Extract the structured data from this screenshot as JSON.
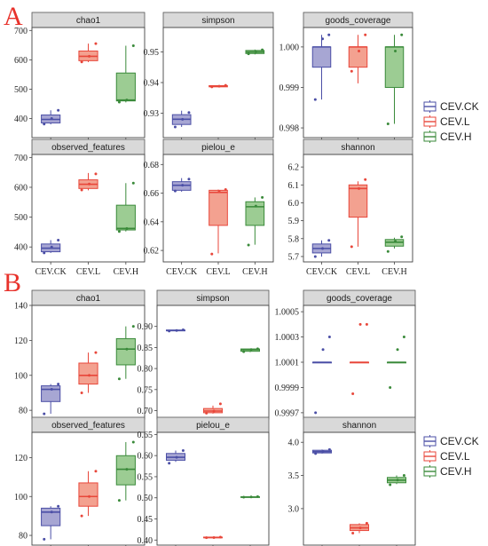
{
  "figure": {
    "panels": [
      {
        "label": "A",
        "legend": [
          {
            "name": "CEV.CK",
            "color": "#4b4fa6",
            "fill": "#a7a6d3"
          },
          {
            "name": "CEV.L",
            "color": "#e8473b",
            "fill": "#f3a190"
          },
          {
            "name": "CEV.H",
            "color": "#3a8a3a",
            "fill": "#9ccc93"
          }
        ]
      },
      {
        "label": "B",
        "legend": [
          {
            "name": "CEV.CK",
            "color": "#4b4fa6",
            "fill": "#a7a6d3"
          },
          {
            "name": "CEV.L",
            "color": "#e8473b",
            "fill": "#f3a190"
          },
          {
            "name": "CEV.H",
            "color": "#3a8a3a",
            "fill": "#9ccc93"
          }
        ]
      }
    ]
  },
  "chart_data": [
    {
      "panel": "A",
      "type": "box",
      "title": "chao1",
      "categories": [
        "CEV.CK",
        "CEV.L",
        "CEV.H"
      ],
      "ylim": [
        335,
        710
      ],
      "yticks": [
        "400",
        "500",
        "600",
        "700"
      ],
      "boxes": [
        {
          "min": 380,
          "q1": 385,
          "median": 397,
          "q3": 412,
          "max": 428,
          "points": [
            381,
            400,
            428
          ]
        },
        {
          "min": 592,
          "q1": 597,
          "median": 612,
          "q3": 630,
          "max": 655,
          "points": [
            593,
            612,
            655
          ]
        },
        {
          "min": 455,
          "q1": 460,
          "median": 463,
          "q3": 555,
          "max": 648,
          "points": [
            456,
            463,
            648
          ]
        }
      ]
    },
    {
      "panel": "A",
      "type": "box",
      "title": "simpson",
      "categories": [
        "CEV.CK",
        "CEV.L",
        "CEV.H"
      ],
      "ylim": [
        0.922,
        0.958
      ],
      "yticks": [
        "0.93",
        "0.94",
        "0.95"
      ],
      "boxes": [
        {
          "min": 0.9255,
          "q1": 0.9263,
          "median": 0.928,
          "q3": 0.9295,
          "max": 0.9308,
          "points": [
            0.9255,
            0.928,
            0.9302
          ]
        },
        {
          "min": 0.9385,
          "q1": 0.9386,
          "median": 0.9388,
          "q3": 0.939,
          "max": 0.9391,
          "points": [
            0.9386,
            0.9388,
            0.9391
          ]
        },
        {
          "min": 0.9492,
          "q1": 0.9495,
          "median": 0.95,
          "q3": 0.9505,
          "max": 0.9508,
          "points": [
            0.9494,
            0.95,
            0.9507
          ]
        }
      ]
    },
    {
      "panel": "A",
      "type": "box",
      "title": "goods_coverage",
      "categories": [
        "CEV.CK",
        "CEV.L",
        "CEV.H"
      ],
      "ylim": [
        0.99776,
        1.00048
      ],
      "yticks": [
        "0.998",
        "0.999",
        "1.000"
      ],
      "boxes": [
        {
          "min": 0.9987,
          "q1": 0.9995,
          "median": 1.0,
          "q3": 1.0,
          "max": 1.0003,
          "points": [
            0.9987,
            1.0002,
            1.0003
          ]
        },
        {
          "min": 0.9991,
          "q1": 0.9995,
          "median": 1.0,
          "q3": 1.0,
          "max": 1.0003,
          "points": [
            0.9994,
            0.9999,
            1.0003
          ]
        },
        {
          "min": 0.9981,
          "q1": 0.999,
          "median": 1.0,
          "q3": 1.0,
          "max": 1.0003,
          "points": [
            0.9981,
            0.9999,
            1.0003
          ]
        }
      ]
    },
    {
      "panel": "A",
      "type": "box",
      "title": "observed_features",
      "categories": [
        "CEV.CK",
        "CEV.L",
        "CEV.H"
      ],
      "ylim": [
        350,
        710
      ],
      "yticks": [
        "400",
        "500",
        "600",
        "700"
      ],
      "boxes": [
        {
          "min": 380,
          "q1": 384,
          "median": 396,
          "q3": 410,
          "max": 423,
          "points": [
            380,
            400,
            423
          ]
        },
        {
          "min": 590,
          "q1": 596,
          "median": 610,
          "q3": 625,
          "max": 648,
          "points": [
            591,
            611,
            645
          ]
        },
        {
          "min": 452,
          "q1": 457,
          "median": 462,
          "q3": 540,
          "max": 614,
          "points": [
            452,
            462,
            614
          ]
        }
      ]
    },
    {
      "panel": "A",
      "type": "box",
      "title": "pielou_e",
      "categories": [
        "CEV.CK",
        "CEV.L",
        "CEV.H"
      ],
      "ylim": [
        0.612,
        0.687
      ],
      "yticks": [
        "0.62",
        "0.64",
        "0.66",
        "0.68"
      ],
      "boxes": [
        {
          "min": 0.661,
          "q1": 0.662,
          "median": 0.6655,
          "q3": 0.668,
          "max": 0.6705,
          "points": [
            0.6615,
            0.6655,
            0.6698
          ]
        },
        {
          "min": 0.618,
          "q1": 0.6375,
          "median": 0.6605,
          "q3": 0.662,
          "max": 0.6625,
          "points": [
            0.6175,
            0.6612,
            0.6625
          ]
        },
        {
          "min": 0.624,
          "q1": 0.6375,
          "median": 0.6505,
          "q3": 0.654,
          "max": 0.657,
          "points": [
            0.6238,
            0.651,
            0.657
          ]
        }
      ]
    },
    {
      "panel": "A",
      "type": "box",
      "title": "shannon",
      "categories": [
        "CEV.CK",
        "CEV.L",
        "CEV.H"
      ],
      "ylim": [
        5.67,
        6.27
      ],
      "yticks": [
        "5.7",
        "5.8",
        "5.9",
        "6.0",
        "6.1",
        "6.2"
      ],
      "boxes": [
        {
          "min": 5.7,
          "q1": 5.72,
          "median": 5.745,
          "q3": 5.77,
          "max": 5.79,
          "points": [
            5.7,
            5.745,
            5.79
          ]
        },
        {
          "min": 5.755,
          "q1": 5.92,
          "median": 6.08,
          "q3": 6.1,
          "max": 6.12,
          "points": [
            5.755,
            6.08,
            6.13
          ]
        },
        {
          "min": 5.745,
          "q1": 5.758,
          "median": 5.78,
          "q3": 5.795,
          "max": 5.805,
          "points": [
            5.728,
            5.785,
            5.81
          ]
        }
      ]
    },
    {
      "panel": "B",
      "type": "box",
      "title": "chao1",
      "categories": [
        "CEV.CK",
        "CEV.L",
        "CEV.H"
      ],
      "ylim": [
        75,
        140
      ],
      "yticks": [
        "80",
        "100",
        "120",
        "140"
      ],
      "boxes": [
        {
          "min": 78,
          "q1": 85,
          "median": 92,
          "q3": 94,
          "max": 95,
          "points": [
            78,
            92,
            95
          ]
        },
        {
          "min": 90,
          "q1": 95,
          "median": 100,
          "q3": 107,
          "max": 113,
          "points": [
            90,
            100,
            113
          ]
        },
        {
          "min": 98,
          "q1": 106,
          "median": 115,
          "q3": 121,
          "max": 128,
          "points": [
            98,
            115,
            128
          ]
        }
      ]
    },
    {
      "panel": "B",
      "type": "box",
      "title": "simpson",
      "categories": [
        "CEV.CK",
        "CEV.L",
        "CEV.H"
      ],
      "ylim": [
        0.68,
        0.95
      ],
      "yticks": [
        "0.70",
        "0.75",
        "0.80",
        "0.85",
        "0.90"
      ],
      "boxes": [
        {
          "min": 0.889,
          "q1": 0.8895,
          "median": 0.8905,
          "q3": 0.8915,
          "max": 0.892,
          "points": [
            0.889,
            0.8905,
            0.892
          ]
        },
        {
          "min": 0.693,
          "q1": 0.695,
          "median": 0.699,
          "q3": 0.705,
          "max": 0.712,
          "points": [
            0.694,
            0.699,
            0.716
          ]
        },
        {
          "min": 0.839,
          "q1": 0.841,
          "median": 0.845,
          "q3": 0.8465,
          "max": 0.847,
          "points": [
            0.84,
            0.845,
            0.847
          ]
        }
      ]
    },
    {
      "panel": "B",
      "type": "box",
      "title": "goods_coverage",
      "categories": [
        "CEV.CK",
        "CEV.L",
        "CEV.H"
      ],
      "ylim": [
        0.99965,
        1.00055
      ],
      "yticks": [
        "0.9997",
        "0.9999",
        "1.0001",
        "1.0003",
        "1.0005"
      ],
      "boxes": [
        {
          "min": 1.0001,
          "q1": 1.0001,
          "median": 1.0001,
          "q3": 1.0001,
          "max": 1.0001,
          "points": [
            0.9997,
            1.0002,
            1.0003
          ]
        },
        {
          "min": 1.0001,
          "q1": 1.0001,
          "median": 1.0001,
          "q3": 1.0001,
          "max": 1.0001,
          "points": [
            0.99985,
            1.0004,
            1.0004
          ]
        },
        {
          "min": 1.0001,
          "q1": 1.0001,
          "median": 1.0001,
          "q3": 1.0001,
          "max": 1.0001,
          "points": [
            0.9999,
            1.0002,
            1.0003
          ]
        }
      ]
    },
    {
      "panel": "B",
      "type": "box",
      "title": "observed_features",
      "categories": [
        "CEV.CK",
        "CEV.L",
        "CEV.H"
      ],
      "ylim": [
        75,
        133
      ],
      "yticks": [
        "80",
        "100",
        "120"
      ],
      "boxes": [
        {
          "min": 78,
          "q1": 85,
          "median": 92,
          "q3": 94,
          "max": 95,
          "points": [
            78,
            92,
            95
          ]
        },
        {
          "min": 90,
          "q1": 95,
          "median": 100,
          "q3": 107,
          "max": 113,
          "points": [
            90,
            100,
            113
          ]
        },
        {
          "min": 98,
          "q1": 106,
          "median": 114,
          "q3": 121,
          "max": 128,
          "points": [
            98,
            114,
            128
          ]
        }
      ]
    },
    {
      "panel": "B",
      "type": "box",
      "title": "pielou_e",
      "categories": [
        "CEV.CK",
        "CEV.L",
        "CEV.H"
      ],
      "ylim": [
        0.388,
        0.655
      ],
      "yticks": [
        "0.40",
        "0.45",
        "0.50",
        "0.55",
        "0.60",
        "0.65"
      ],
      "boxes": [
        {
          "min": 0.585,
          "q1": 0.589,
          "median": 0.596,
          "q3": 0.605,
          "max": 0.612,
          "points": [
            0.582,
            0.596,
            0.612
          ]
        },
        {
          "min": 0.405,
          "q1": 0.4055,
          "median": 0.406,
          "q3": 0.407,
          "max": 0.4075,
          "points": [
            0.4055,
            0.406,
            0.407
          ]
        },
        {
          "min": 0.501,
          "q1": 0.5015,
          "median": 0.502,
          "q3": 0.5025,
          "max": 0.503,
          "points": [
            0.5015,
            0.502,
            0.5028
          ]
        }
      ]
    },
    {
      "panel": "B",
      "type": "box",
      "title": "shannon",
      "categories": [
        "CEV.CK",
        "CEV.L",
        "CEV.H"
      ],
      "ylim": [
        2.45,
        4.15
      ],
      "yticks": [
        "3.0",
        "3.5",
        "4.0"
      ],
      "boxes": [
        {
          "min": 3.83,
          "q1": 3.84,
          "median": 3.86,
          "q3": 3.88,
          "max": 3.89,
          "points": [
            3.83,
            3.86,
            3.89
          ]
        },
        {
          "min": 2.63,
          "q1": 2.67,
          "median": 2.71,
          "q3": 2.76,
          "max": 2.78,
          "points": [
            2.63,
            2.71,
            2.78
          ]
        },
        {
          "min": 3.37,
          "q1": 3.39,
          "median": 3.43,
          "q3": 3.47,
          "max": 3.5,
          "points": [
            3.36,
            3.43,
            3.5
          ]
        }
      ]
    }
  ]
}
